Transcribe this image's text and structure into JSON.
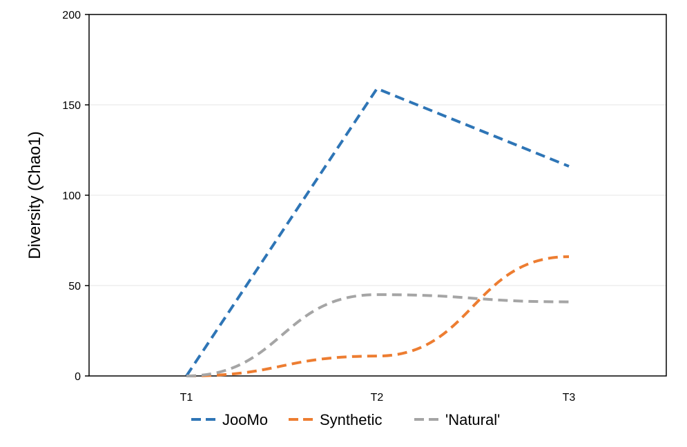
{
  "chart_data": {
    "type": "line",
    "title": "",
    "xlabel": "",
    "ylabel": "Diversity (Chao1)",
    "categories": [
      "T1",
      "T2",
      "T3"
    ],
    "ylim": [
      0,
      200
    ],
    "yticks": [
      0,
      50,
      100,
      150,
      200
    ],
    "grid": true,
    "legend_position": "bottom",
    "line_style": "dashed",
    "series": [
      {
        "name": "JooMo",
        "values": [
          0,
          159,
          116
        ],
        "color": "#2e75b6"
      },
      {
        "name": "Synthetic",
        "values": [
          0,
          11,
          66
        ],
        "color": "#ed7d31"
      },
      {
        "name": "'Natural'",
        "values": [
          0,
          45,
          41
        ],
        "color": "#a5a5a5"
      }
    ]
  }
}
